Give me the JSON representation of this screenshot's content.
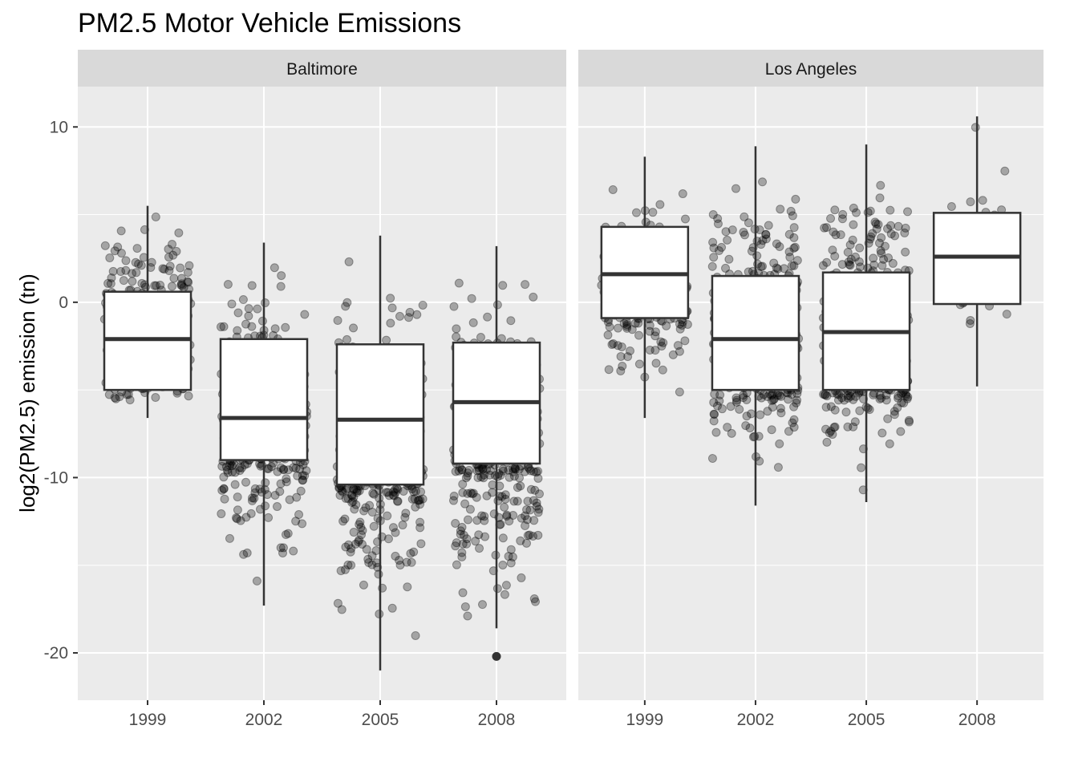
{
  "chart_data": {
    "type": "boxplot",
    "title": "PM2.5 Motor Vehicle Emissions",
    "xlabel": "",
    "ylabel": "log2(PM2.5) emission (tn)",
    "ylim": [
      -22.7,
      12.3
    ],
    "yticks": [
      10,
      0,
      -10,
      -20
    ],
    "categories": [
      "1999",
      "2002",
      "2005",
      "2008"
    ],
    "grid": true,
    "jitter_points": true,
    "panels": [
      {
        "name": "Baltimore",
        "boxes": [
          {
            "year": "1999",
            "whisker_low": -6.6,
            "q1": -5.0,
            "median": -2.1,
            "q3": 0.6,
            "whisker_high": 5.5,
            "outliers": [],
            "n": 220,
            "jitter_spread": [
              -6.6,
              5.5
            ]
          },
          {
            "year": "2002",
            "whisker_low": -17.3,
            "q1": -9.0,
            "median": -6.6,
            "q3": -2.1,
            "whisker_high": 3.4,
            "outliers": [],
            "n": 330,
            "jitter_spread": [
              -17.3,
              3.4
            ]
          },
          {
            "year": "2005",
            "whisker_low": -21.0,
            "q1": -10.4,
            "median": -6.7,
            "q3": -2.4,
            "whisker_high": 3.8,
            "outliers": [],
            "n": 330,
            "jitter_spread": [
              -21.0,
              3.8
            ]
          },
          {
            "year": "2008",
            "whisker_low": -18.6,
            "q1": -9.2,
            "median": -5.7,
            "q3": -2.3,
            "whisker_high": 3.2,
            "outliers": [
              -20.2
            ],
            "n": 330,
            "jitter_spread": [
              -20.2,
              3.2
            ]
          }
        ]
      },
      {
        "name": "Los Angeles",
        "boxes": [
          {
            "year": "1999",
            "whisker_low": -6.6,
            "q1": -0.9,
            "median": 1.6,
            "q3": 4.3,
            "whisker_high": 8.3,
            "outliers": [],
            "n": 180,
            "jitter_spread": [
              -6.6,
              8.3
            ]
          },
          {
            "year": "2002",
            "whisker_low": -11.6,
            "q1": -5.0,
            "median": -2.1,
            "q3": 1.5,
            "whisker_high": 8.9,
            "outliers": [],
            "n": 360,
            "jitter_spread": [
              -11.6,
              8.9
            ]
          },
          {
            "year": "2005",
            "whisker_low": -11.4,
            "q1": -5.0,
            "median": -1.7,
            "q3": 1.7,
            "whisker_high": 9.0,
            "outliers": [],
            "n": 360,
            "jitter_spread": [
              -11.4,
              9.0
            ]
          },
          {
            "year": "2008",
            "whisker_low": -4.8,
            "q1": -0.1,
            "median": 2.6,
            "q3": 5.1,
            "whisker_high": 10.6,
            "outliers": [],
            "n": 40,
            "jitter_spread": [
              -4.8,
              10.6
            ]
          }
        ]
      }
    ],
    "colors": {
      "panel_bg": "#ebebeb",
      "strip_bg": "#d9d9d9",
      "grid_major": "#ffffff",
      "point": "#000000",
      "box_fill": "#ffffff",
      "box_line": "#333333"
    }
  }
}
